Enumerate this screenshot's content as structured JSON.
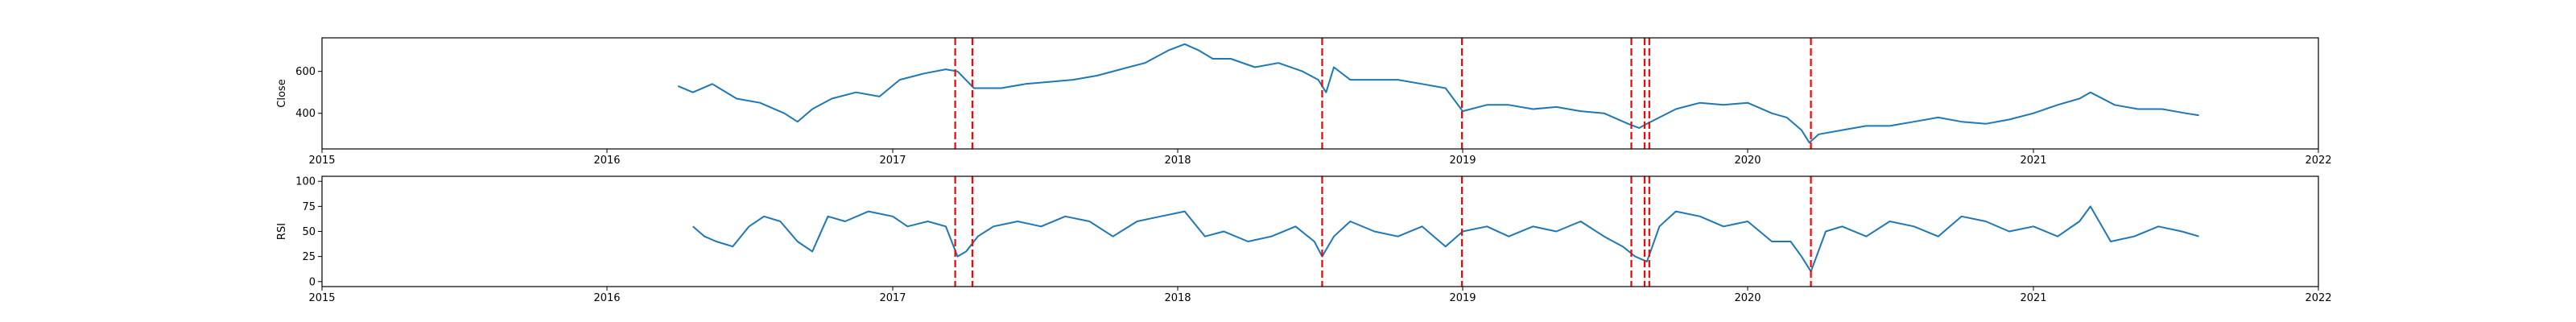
{
  "chart_data": [
    {
      "type": "line",
      "ylabel": "Close",
      "xlim": [
        "2015-01-01",
        "2022-01-01"
      ],
      "ylim": [
        230,
        760
      ],
      "x_ticks": [
        "2015",
        "2016",
        "2017",
        "2018",
        "2019",
        "2020",
        "2021",
        "2022"
      ],
      "y_ticks": [
        400,
        600
      ],
      "grid": false,
      "series": [
        {
          "color": "#1f77b4",
          "x": [
            "2016-04-01",
            "2016-04-20",
            "2016-05-15",
            "2016-06-15",
            "2016-07-15",
            "2016-08-15",
            "2016-09-01",
            "2016-09-20",
            "2016-10-15",
            "2016-11-15",
            "2016-12-15",
            "2017-01-10",
            "2017-02-10",
            "2017-03-10",
            "2017-03-25",
            "2017-04-15",
            "2017-05-20",
            "2017-06-20",
            "2017-07-20",
            "2017-08-20",
            "2017-09-20",
            "2017-10-20",
            "2017-11-20",
            "2017-12-20",
            "2018-01-10",
            "2018-01-28",
            "2018-02-15",
            "2018-03-10",
            "2018-04-10",
            "2018-05-10",
            "2018-06-10",
            "2018-06-30",
            "2018-07-10",
            "2018-07-20",
            "2018-08-10",
            "2018-09-10",
            "2018-10-10",
            "2018-11-10",
            "2018-12-10",
            "2019-01-01",
            "2019-02-01",
            "2019-03-01",
            "2019-04-01",
            "2019-05-01",
            "2019-06-01",
            "2019-07-01",
            "2019-08-01",
            "2019-08-15",
            "2019-08-25",
            "2019-09-10",
            "2019-10-01",
            "2019-11-01",
            "2019-12-01",
            "2020-01-01",
            "2020-02-01",
            "2020-02-20",
            "2020-03-10",
            "2020-03-20",
            "2020-04-01",
            "2020-05-01",
            "2020-06-01",
            "2020-07-01",
            "2020-08-01",
            "2020-09-01",
            "2020-10-01",
            "2020-11-01",
            "2020-12-01",
            "2021-01-01",
            "2021-02-01",
            "2021-03-01",
            "2021-03-15",
            "2021-04-15",
            "2021-05-15",
            "2021-06-15",
            "2021-07-15",
            "2021-08-01"
          ],
          "y": [
            530,
            500,
            540,
            470,
            450,
            400,
            360,
            420,
            470,
            500,
            480,
            560,
            590,
            610,
            600,
            520,
            520,
            540,
            550,
            560,
            580,
            610,
            640,
            700,
            730,
            700,
            660,
            660,
            620,
            640,
            600,
            560,
            500,
            620,
            560,
            560,
            560,
            540,
            520,
            410,
            440,
            440,
            420,
            430,
            410,
            400,
            350,
            330,
            350,
            380,
            420,
            450,
            440,
            450,
            400,
            380,
            320,
            260,
            300,
            320,
            340,
            340,
            360,
            380,
            360,
            350,
            370,
            400,
            440,
            470,
            500,
            440,
            420,
            420,
            400,
            390
          ]
        }
      ],
      "vlines": [
        "2017-03-22",
        "2017-04-13",
        "2018-07-05",
        "2018-12-31",
        "2019-08-05",
        "2019-08-22",
        "2019-08-28",
        "2020-03-22"
      ],
      "vline_color": "#ff0000"
    },
    {
      "type": "line",
      "ylabel": "RSI",
      "xlim": [
        "2015-01-01",
        "2022-01-01"
      ],
      "ylim": [
        -5,
        105
      ],
      "x_ticks": [
        "2015",
        "2016",
        "2017",
        "2018",
        "2019",
        "2020",
        "2021",
        "2022"
      ],
      "y_ticks": [
        0,
        25,
        50,
        75,
        100
      ],
      "grid": false,
      "series": [
        {
          "color": "#1f77b4",
          "x": [
            "2016-04-20",
            "2016-05-05",
            "2016-05-20",
            "2016-06-10",
            "2016-07-01",
            "2016-07-20",
            "2016-08-10",
            "2016-09-01",
            "2016-09-20",
            "2016-10-10",
            "2016-11-01",
            "2016-12-01",
            "2017-01-01",
            "2017-01-20",
            "2017-02-15",
            "2017-03-10",
            "2017-03-25",
            "2017-04-05",
            "2017-04-20",
            "2017-05-10",
            "2017-06-10",
            "2017-07-10",
            "2017-08-10",
            "2017-09-10",
            "2017-10-10",
            "2017-11-10",
            "2017-12-10",
            "2018-01-10",
            "2018-02-05",
            "2018-03-01",
            "2018-04-01",
            "2018-05-01",
            "2018-06-01",
            "2018-06-25",
            "2018-07-05",
            "2018-07-20",
            "2018-08-10",
            "2018-09-10",
            "2018-10-10",
            "2018-11-10",
            "2018-12-10",
            "2019-01-01",
            "2019-02-01",
            "2019-03-01",
            "2019-04-01",
            "2019-05-01",
            "2019-06-01",
            "2019-07-01",
            "2019-07-25",
            "2019-08-10",
            "2019-08-25",
            "2019-09-10",
            "2019-10-01",
            "2019-11-01",
            "2019-12-01",
            "2020-01-01",
            "2020-02-01",
            "2020-02-25",
            "2020-03-10",
            "2020-03-22",
            "2020-04-10",
            "2020-05-01",
            "2020-06-01",
            "2020-07-01",
            "2020-08-01",
            "2020-09-01",
            "2020-10-01",
            "2020-11-01",
            "2020-12-01",
            "2021-01-01",
            "2021-02-01",
            "2021-03-01",
            "2021-03-15",
            "2021-04-10",
            "2021-05-10",
            "2021-06-10",
            "2021-07-10",
            "2021-08-01"
          ],
          "y": [
            55,
            45,
            40,
            35,
            55,
            65,
            60,
            40,
            30,
            65,
            60,
            70,
            65,
            55,
            60,
            55,
            25,
            30,
            45,
            55,
            60,
            55,
            65,
            60,
            45,
            60,
            65,
            70,
            45,
            50,
            40,
            45,
            55,
            40,
            25,
            45,
            60,
            50,
            45,
            55,
            35,
            50,
            55,
            45,
            55,
            50,
            60,
            45,
            35,
            25,
            20,
            55,
            70,
            65,
            55,
            60,
            40,
            40,
            25,
            10,
            50,
            55,
            45,
            60,
            55,
            45,
            65,
            60,
            50,
            55,
            45,
            60,
            75,
            40,
            45,
            55,
            50,
            45
          ]
        }
      ],
      "vlines": [
        "2017-03-22",
        "2017-04-13",
        "2018-07-05",
        "2018-12-31",
        "2019-08-05",
        "2019-08-22",
        "2019-08-28",
        "2020-03-22"
      ],
      "vline_color": "#ff0000"
    }
  ]
}
